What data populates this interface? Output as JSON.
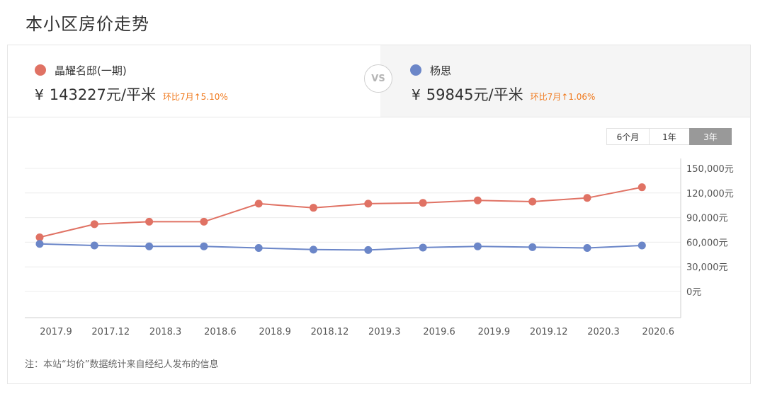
{
  "page": {
    "title": "本小区房价走势"
  },
  "compare": {
    "vs_label": "VS",
    "left": {
      "name": "晶耀名邸(一期)",
      "currency": "¥",
      "price": "143227元/平米",
      "change": "环比7月↑5.10%",
      "color": "#e07264"
    },
    "right": {
      "name": "杨思",
      "currency": "¥",
      "price": "59845元/平米",
      "change": "环比7月↑1.06%",
      "color": "#6b86c8"
    },
    "change_color": "#f07a1e"
  },
  "tabs": [
    {
      "label": "6个月",
      "active": false
    },
    {
      "label": "1年",
      "active": false
    },
    {
      "label": "3年",
      "active": true
    }
  ],
  "note": "注：本站“均价”数据统计来自经纪人发布的信息",
  "chart_data": {
    "type": "line",
    "x": [
      "2017.9",
      "2017.12",
      "2018.3",
      "2018.6",
      "2018.9",
      "2018.12",
      "2019.3",
      "2019.6",
      "2019.9",
      "2019.12",
      "2020.3",
      "2020.6"
    ],
    "y_ticks": [
      "150,000元",
      "120,000元",
      "90,000元",
      "60,000元",
      "30,000元",
      "0元"
    ],
    "series": [
      {
        "name": "晶耀名邸(一期)",
        "color": "#e07264",
        "values": [
          66000,
          82000,
          85000,
          85000,
          107000,
          102000,
          107000,
          108000,
          111000,
          109500,
          114000,
          127000
        ]
      },
      {
        "name": "杨思",
        "color": "#6b86c8",
        "values": [
          58000,
          56000,
          55000,
          55000,
          53000,
          51000,
          50500,
          53500,
          55000,
          54000,
          53000,
          56000
        ]
      }
    ],
    "grid": true,
    "y_axis_position": "right",
    "x_labels_offset": "half-step"
  }
}
